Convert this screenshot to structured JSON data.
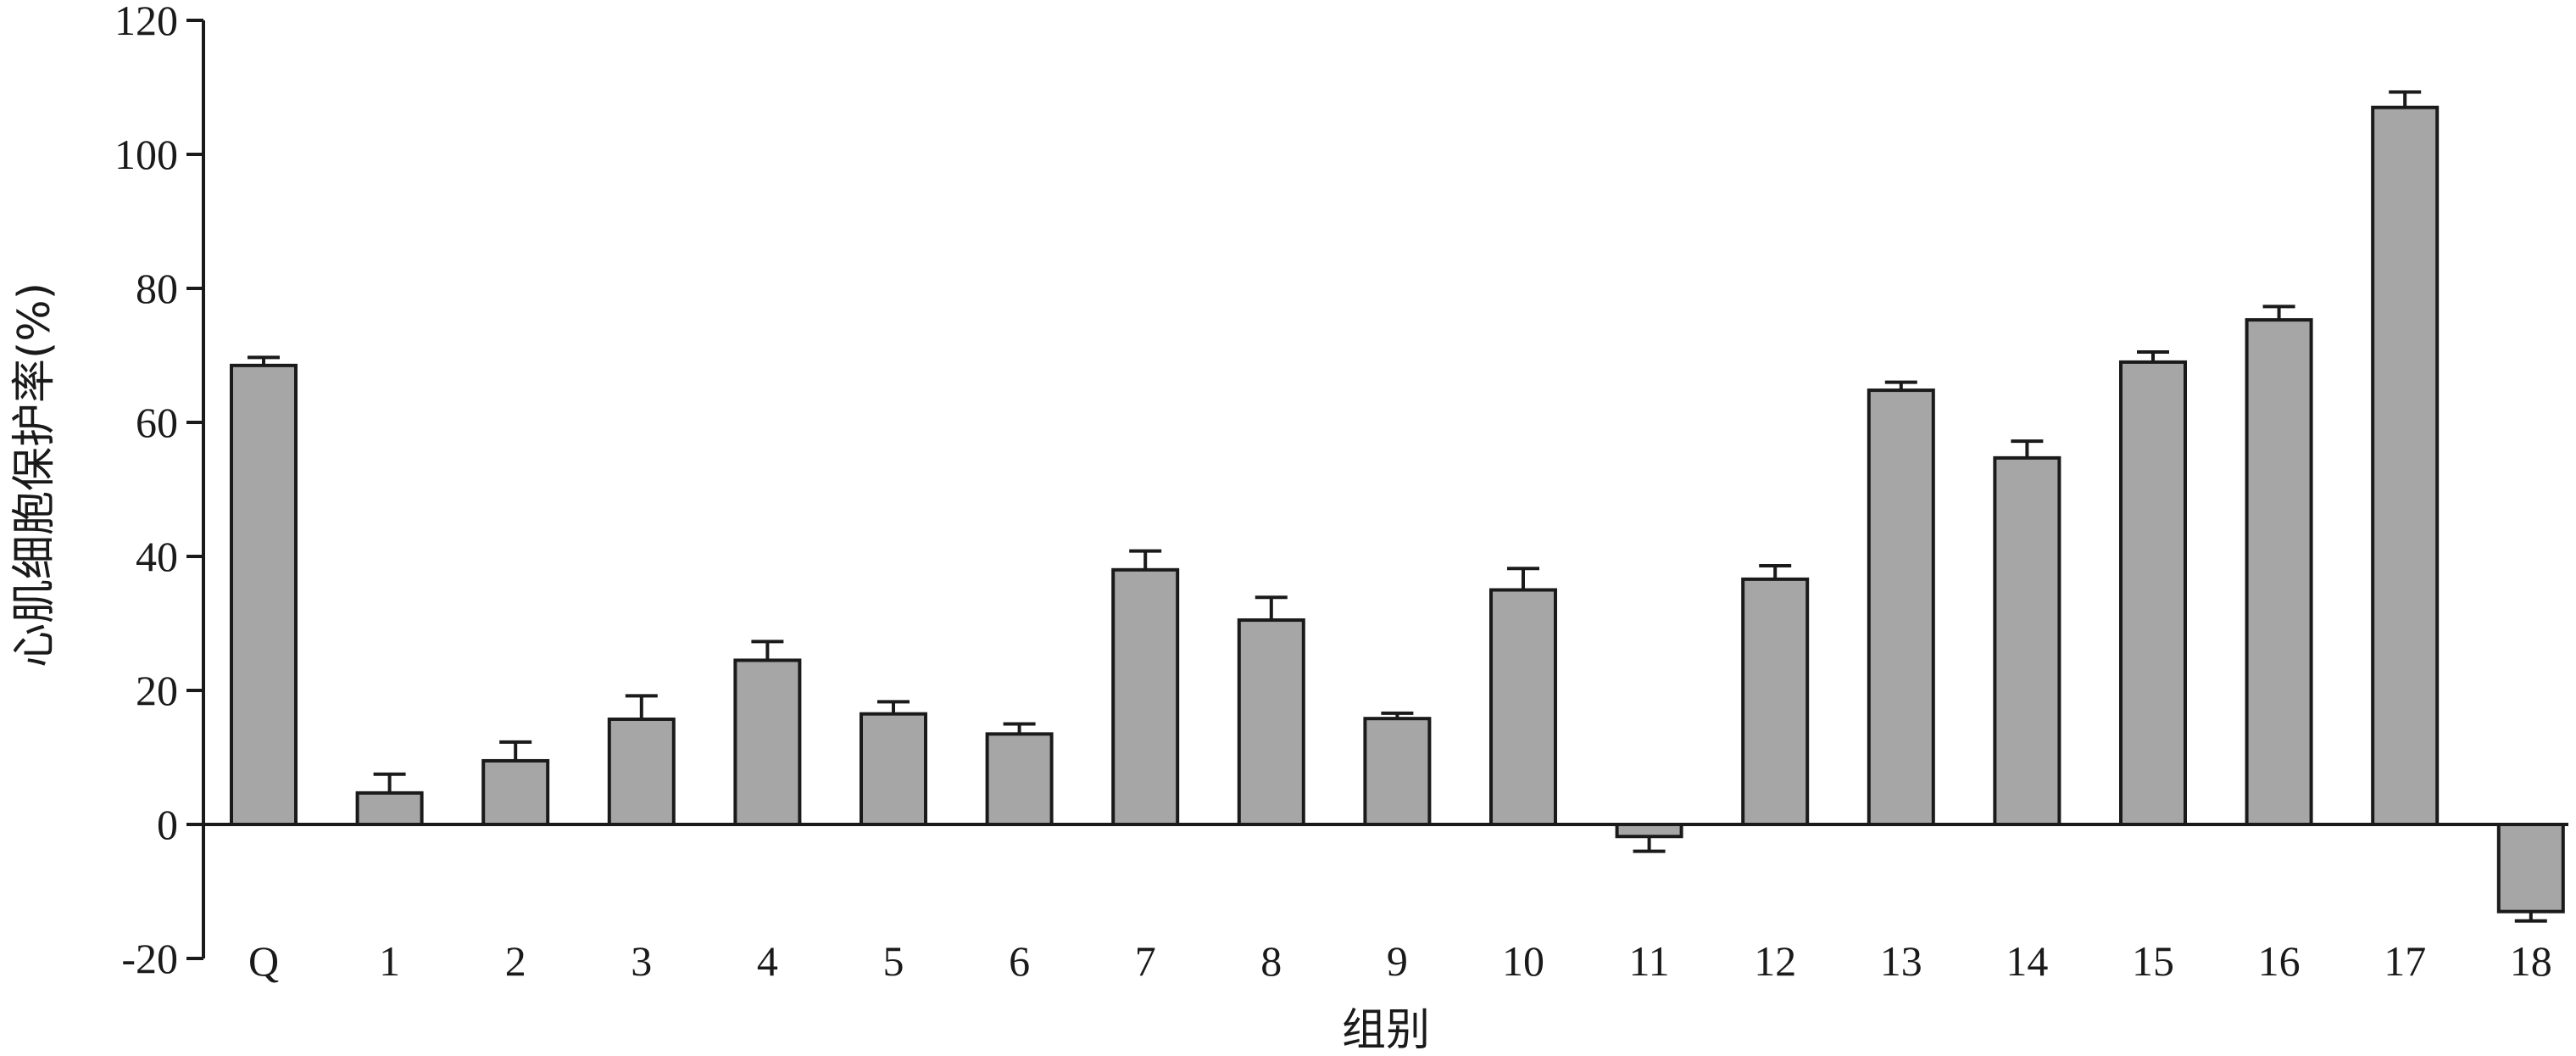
{
  "chart_data": {
    "type": "bar",
    "title": "",
    "xlabel": "组别",
    "ylabel": "心肌细胞保护率(%)",
    "categories": [
      "Q",
      "1",
      "2",
      "3",
      "4",
      "5",
      "6",
      "7",
      "8",
      "9",
      "10",
      "11",
      "12",
      "13",
      "14",
      "15",
      "16",
      "17",
      "18"
    ],
    "values": [
      68.5,
      4.7,
      9.5,
      15.7,
      24.5,
      16.5,
      13.5,
      38,
      30.5,
      15.8,
      35,
      -1.8,
      36.6,
      64.8,
      54.7,
      69,
      75.3,
      107,
      -13
    ],
    "errors": [
      1.2,
      2.8,
      2.8,
      3.5,
      2.8,
      1.8,
      1.5,
      2.8,
      3.4,
      0.8,
      3.2,
      2.2,
      2.0,
      1.2,
      2.5,
      1.5,
      2.0,
      2.3,
      1.4
    ],
    "ylim": [
      -20,
      120
    ],
    "yticks": [
      "120",
      "100",
      "80",
      "60",
      "40",
      "20",
      "0",
      "-20"
    ],
    "bar_color": "#a6a6a6",
    "grid": false,
    "legend": "none"
  }
}
